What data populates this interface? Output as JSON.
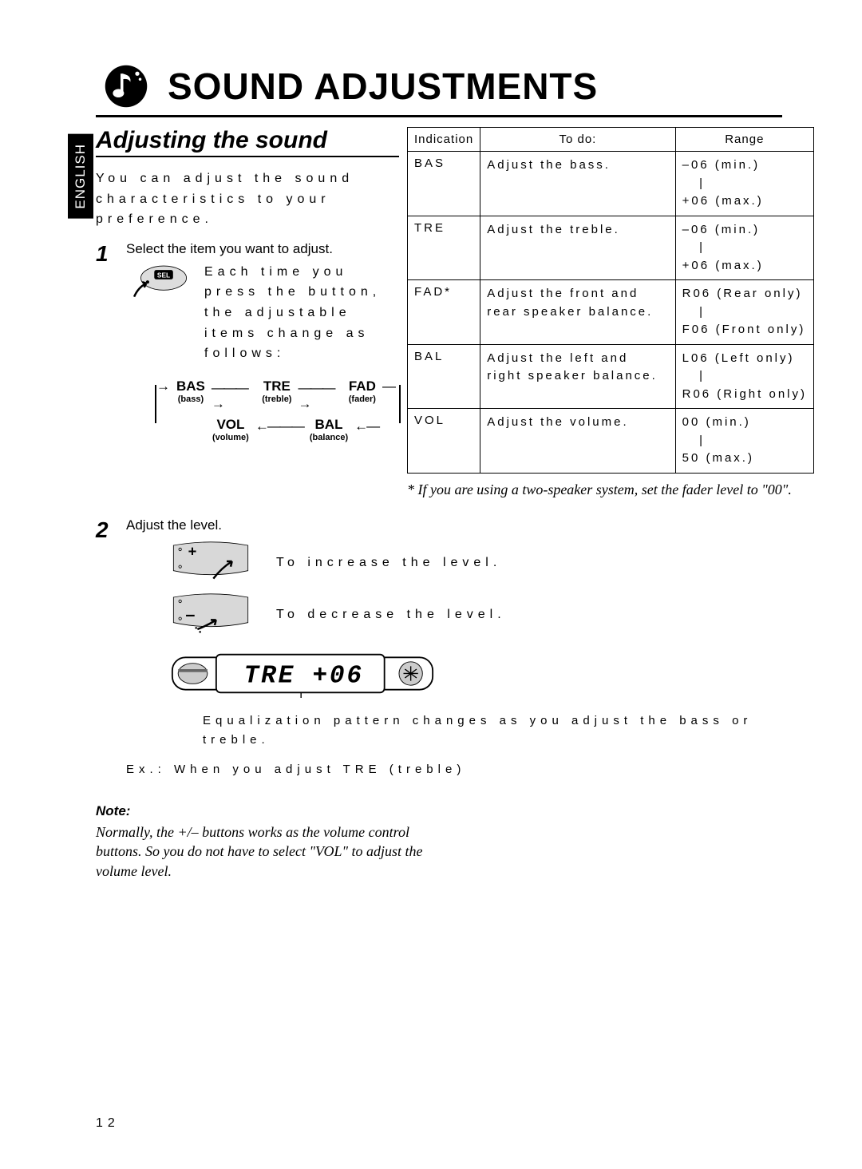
{
  "page": {
    "title": "SOUND ADJUSTMENTS",
    "language_tab": "ENGLISH",
    "page_number": "12"
  },
  "section": {
    "title": "Adjusting the sound",
    "intro": "You can adjust the sound characteristics to your preference."
  },
  "step1": {
    "number": "1",
    "heading": "Select the item you want to adjust.",
    "sub": "Each time you press the button, the adjustable items change as follows:",
    "sel_label": "SEL",
    "diagram": {
      "bas": "BAS",
      "bas_sub": "(bass)",
      "tre": "TRE",
      "tre_sub": "(treble)",
      "fad": "FAD",
      "fad_sub": "(fader)",
      "vol": "VOL",
      "vol_sub": "(volume)",
      "bal": "BAL",
      "bal_sub": "(balance)"
    }
  },
  "table": {
    "headers": {
      "indication": "Indication",
      "todo": "To do:",
      "range": "Range"
    },
    "rows": [
      {
        "ind": "BAS",
        "todo": "Adjust the bass.",
        "range": "–06 (min.)\n   |\n+06 (max.)"
      },
      {
        "ind": "TRE",
        "todo": "Adjust the treble.",
        "range": "–06 (min.)\n   |\n+06 (max.)"
      },
      {
        "ind": "FAD*",
        "todo": "Adjust the front and rear speaker balance.",
        "range": "R06 (Rear only)\n   |\nF06 (Front only)"
      },
      {
        "ind": "BAL",
        "todo": "Adjust the left and right speaker balance.",
        "range": "L06 (Left only)\n   |\nR06 (Right only)"
      },
      {
        "ind": "VOL",
        "todo": "Adjust the volume.",
        "range": "00 (min.)\n   |\n50 (max.)"
      }
    ],
    "footnote": "* If you are using a two-speaker system, set the fader level to \"00\"."
  },
  "step2": {
    "number": "2",
    "heading": "Adjust the level.",
    "increase": "To increase the level.",
    "decrease": "To decrease the level.",
    "display_value": "TRE   +06",
    "caption": "Equalization pattern changes as you adjust the bass or treble.",
    "example": "Ex.: When you adjust TRE (treble)"
  },
  "note": {
    "heading": "Note:",
    "body": "Normally, the +/– buttons works as the volume control buttons. So you do not have to select \"VOL\" to adjust the volume level."
  }
}
